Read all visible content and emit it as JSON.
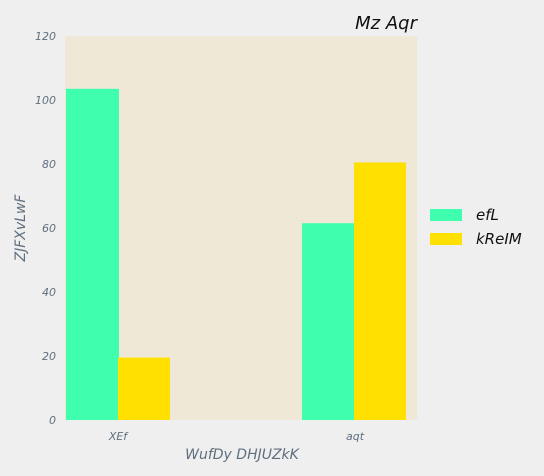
{
  "chart_data": {
    "type": "bar",
    "title": "Mz Aqr",
    "xlabel": "WufDy DHJUZkK",
    "ylabel": "ZJFXvLwF",
    "categories": [
      "XEf",
      "aqt"
    ],
    "series": [
      {
        "name": "efL",
        "values": [
          103.5,
          61.5
        ],
        "color": "#3fffae"
      },
      {
        "name": "kReIM",
        "values": [
          19.5,
          80.5
        ],
        "color": "#ffe000"
      }
    ],
    "ylim": [
      0,
      120
    ],
    "yticks": [
      0,
      20,
      40,
      60,
      80,
      100,
      120
    ],
    "grid": false,
    "legend_position": "right",
    "plot_background": "#efe8d6",
    "page_background": "#efefef"
  }
}
